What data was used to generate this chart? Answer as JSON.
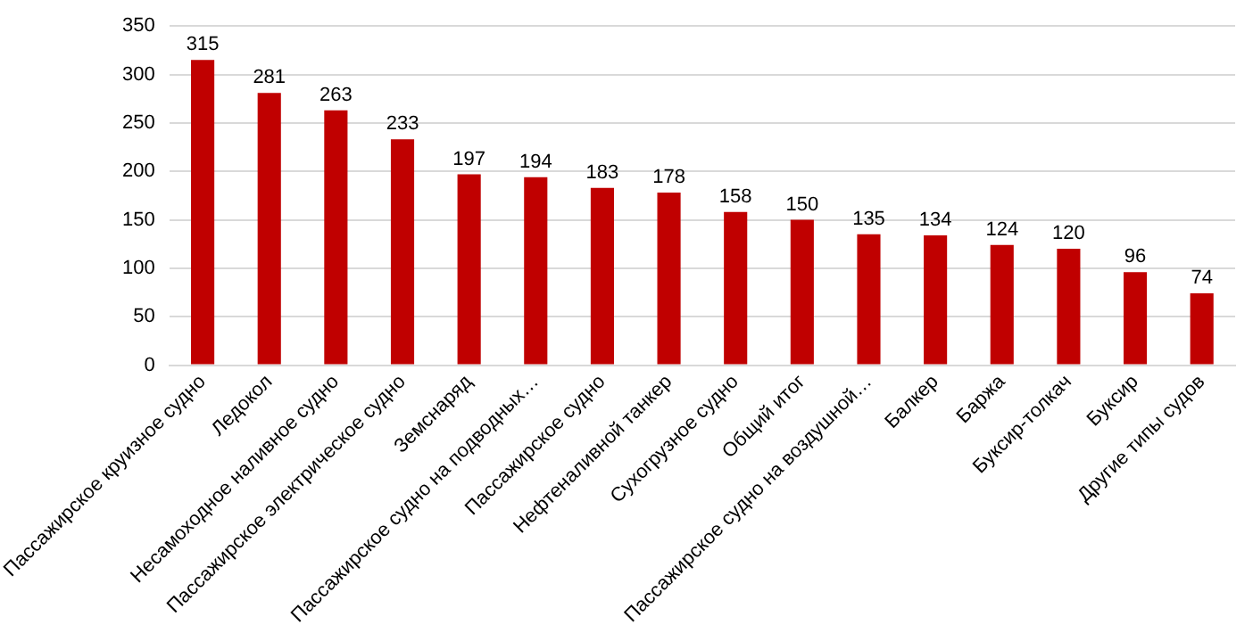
{
  "chart_data": {
    "type": "bar",
    "categories": [
      "Пассажирское круизное судно",
      "Ледокол",
      "Несамоходное наливное судно",
      "Пассажирское электрическое судно",
      "Земснаряд",
      "Пассажирское судно на подводных…",
      "Пассажирское судно",
      "Нефтеналивной танкер",
      "Сухогрузное судно",
      "Общий итог",
      "Пассажирское судно на воздушной…",
      "Балкер",
      "Баржа",
      "Буксир-толкач",
      "Буксир",
      "Другие типы судов"
    ],
    "values": [
      315,
      281,
      263,
      233,
      197,
      194,
      183,
      178,
      158,
      150,
      135,
      134,
      124,
      120,
      96,
      74
    ],
    "color": "#c00000",
    "ylim": [
      0,
      350
    ],
    "yticks": [
      0,
      50,
      100,
      150,
      200,
      250,
      300,
      350
    ],
    "grid": "y",
    "data_labels": true,
    "legend": false
  }
}
